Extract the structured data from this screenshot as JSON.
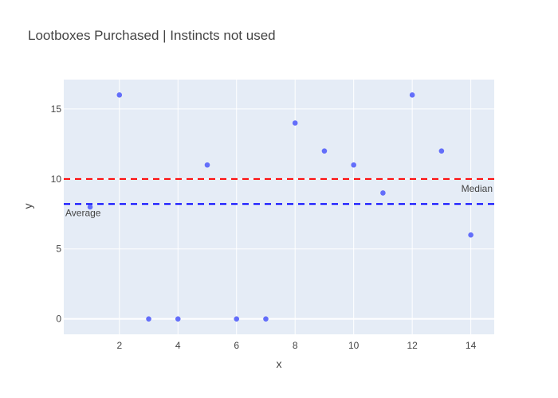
{
  "chart_data": {
    "type": "scatter",
    "title": "Lootboxes Purchased | Instincts not used",
    "xlabel": "x",
    "ylabel": "y",
    "xlim": [
      0.1,
      14.8
    ],
    "ylim": [
      -1.1,
      17.1
    ],
    "x_ticks": [
      2,
      4,
      6,
      8,
      10,
      12,
      14
    ],
    "y_ticks": [
      0,
      5,
      10,
      15
    ],
    "grid": true,
    "plot_bg": "#e5ecf6",
    "marker_color": "#636efa",
    "x": [
      1,
      2,
      3,
      4,
      5,
      6,
      7,
      8,
      9,
      10,
      11,
      12,
      13,
      14
    ],
    "y": [
      8,
      16,
      0,
      0,
      11,
      0,
      0,
      14,
      12,
      11,
      9,
      16,
      12,
      6
    ],
    "reference_lines": [
      {
        "label": "Median",
        "value": 10,
        "color": "#ff0000",
        "label_position": "right"
      },
      {
        "label": "Average",
        "value": 8.21,
        "color": "#0000ff",
        "label_position": "left"
      }
    ]
  }
}
